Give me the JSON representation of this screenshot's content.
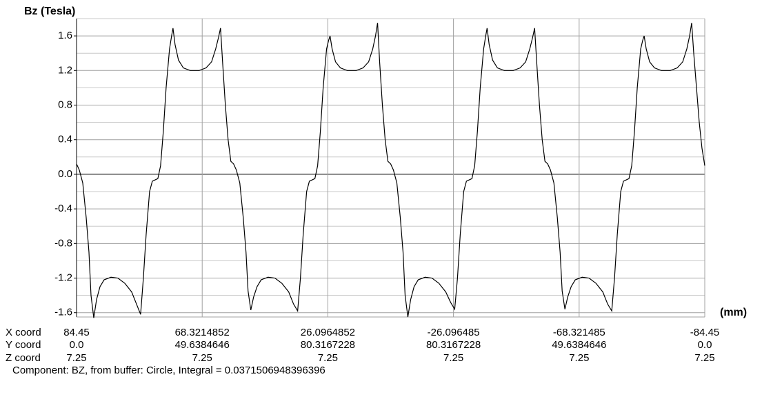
{
  "chart_data": {
    "type": "line",
    "y_axis_title": "Bz (Tesla)",
    "x_axis_title": "(mm)",
    "footer": "Component: BZ, from buffer: Circle, Integral = 0.0371506948396396",
    "xlim": [
      0,
      265.29
    ],
    "ylim": [
      -1.65,
      1.8
    ],
    "yticks": [
      1.6,
      1.2,
      0.8,
      0.4,
      {
        "value": 0,
        "label": "0.0"
      },
      -0.4,
      -0.8,
      -1.2,
      -1.6
    ],
    "minor_yticks": [
      1.8,
      1.4,
      1.0,
      0.6,
      0.2,
      -0.2,
      -0.6,
      -1.0,
      -1.4
    ],
    "grid": true,
    "x_row_label": "X coord",
    "xticks": [
      {
        "value": 0,
        "label": "84.45"
      },
      {
        "value": 53.06,
        "label": "68.3214852"
      },
      {
        "value": 106.12,
        "label": "26.0964852"
      },
      {
        "value": 159.18,
        "label": "-26.096485"
      },
      {
        "value": 212.24,
        "label": "-68.321485"
      },
      {
        "value": 265.29,
        "label": "-84.45"
      }
    ],
    "y_coord_row": {
      "label": "Y coord",
      "values": [
        "0.0",
        "49.6384646",
        "80.3167228",
        "80.3167228",
        "49.6384646",
        "0.0"
      ]
    },
    "z_coord_row": {
      "label": "Z coord",
      "values": [
        "7.25",
        "7.25",
        "7.25",
        "7.25",
        "7.25",
        "7.25"
      ]
    },
    "series": [
      {
        "color": "#000000",
        "x": [
          0,
          1.16,
          2.62,
          4.07,
          5.24,
          6.11,
          7.27,
          8.44,
          9.89,
          11.64,
          14.55,
          17.45,
          20.36,
          23.27,
          25.31,
          27.05,
          28.22,
          29.38,
          30.84,
          32.0,
          34.33,
          35.49,
          36.65,
          37.82,
          39.27,
          40.14,
          40.73,
          41.6,
          43.05,
          45.09,
          48.0,
          51.78,
          54.69,
          57.02,
          58.76,
          59.93,
          60.8,
          61.67,
          62.84,
          64.0,
          65.16,
          66.32,
          67.48,
          68.94,
          70.39,
          71.56,
          72.43,
          73.59,
          74.76,
          76.21,
          77.96,
          80.87,
          83.77,
          86.68,
          89.59,
          91.63,
          93.37,
          94.54,
          95.7,
          97.16,
          98.32,
          100.65,
          101.81,
          102.97,
          104.14,
          105.59,
          106.46,
          107.05,
          107.92,
          109.37,
          111.41,
          114.32,
          118.1,
          121.01,
          123.34,
          125.08,
          126.25,
          127.12,
          127.99,
          129.16,
          130.32,
          131.48,
          132.64,
          133.8,
          135.26,
          136.71,
          137.88,
          138.75,
          139.91,
          141.08,
          142.53,
          144.28,
          147.19,
          150.09,
          153.0,
          155.91,
          157.95,
          159.69,
          160.86,
          162.02,
          163.48,
          164.64,
          166.97,
          168.13,
          169.29,
          170.46,
          171.91,
          172.78,
          173.37,
          174.24,
          175.69,
          177.73,
          180.64,
          184.42,
          187.33,
          189.66,
          191.4,
          192.57,
          193.44,
          194.31,
          195.48,
          196.64,
          197.8,
          198.96,
          200.12,
          201.58,
          203.03,
          204.2,
          205.07,
          206.23,
          207.4,
          208.85,
          210.6,
          213.51,
          216.41,
          219.32,
          222.23,
          224.27,
          226.01,
          227.18,
          228.34,
          229.8,
          230.96,
          233.29,
          234.45,
          235.61,
          236.78,
          238.23,
          239.1,
          239.69,
          240.56,
          242.01,
          244.05,
          246.96,
          250.74,
          253.65,
          255.98,
          257.72,
          258.89,
          259.76,
          260.63,
          261.8,
          262.96,
          264.12,
          265.29
        ],
        "values": [
          0.12,
          0.05,
          -0.1,
          -0.5,
          -0.9,
          -1.4,
          -1.66,
          -1.45,
          -1.3,
          -1.22,
          -1.19,
          -1.2,
          -1.26,
          -1.36,
          -1.5,
          -1.62,
          -1.2,
          -0.7,
          -0.2,
          -0.08,
          -0.05,
          0.1,
          0.5,
          1.0,
          1.45,
          1.6,
          1.69,
          1.5,
          1.32,
          1.23,
          1.2,
          1.2,
          1.23,
          1.3,
          1.45,
          1.58,
          1.69,
          1.3,
          0.8,
          0.4,
          0.15,
          0.12,
          0.05,
          -0.1,
          -0.5,
          -0.9,
          -1.35,
          -1.57,
          -1.42,
          -1.3,
          -1.22,
          -1.19,
          -1.2,
          -1.26,
          -1.36,
          -1.5,
          -1.58,
          -1.2,
          -0.7,
          -0.2,
          -0.08,
          -0.05,
          0.1,
          0.5,
          1.0,
          1.45,
          1.55,
          1.6,
          1.45,
          1.3,
          1.23,
          1.2,
          1.2,
          1.23,
          1.3,
          1.45,
          1.6,
          1.75,
          1.3,
          0.8,
          0.4,
          0.15,
          0.12,
          0.05,
          -0.1,
          -0.5,
          -0.9,
          -1.4,
          -1.65,
          -1.45,
          -1.3,
          -1.22,
          -1.19,
          -1.2,
          -1.26,
          -1.36,
          -1.48,
          -1.56,
          -1.2,
          -0.7,
          -0.2,
          -0.08,
          -0.05,
          0.1,
          0.5,
          1.0,
          1.45,
          1.6,
          1.69,
          1.5,
          1.32,
          1.23,
          1.2,
          1.2,
          1.23,
          1.3,
          1.45,
          1.58,
          1.69,
          1.3,
          0.8,
          0.4,
          0.15,
          0.12,
          0.05,
          -0.1,
          -0.5,
          -0.9,
          -1.35,
          -1.56,
          -1.42,
          -1.3,
          -1.22,
          -1.19,
          -1.2,
          -1.26,
          -1.36,
          -1.5,
          -1.58,
          -1.2,
          -0.7,
          -0.2,
          -0.08,
          -0.05,
          0.1,
          0.5,
          1.0,
          1.45,
          1.55,
          1.6,
          1.45,
          1.3,
          1.23,
          1.2,
          1.2,
          1.23,
          1.3,
          1.45,
          1.6,
          1.75,
          1.4,
          1.0,
          0.6,
          0.3,
          0.1
        ]
      }
    ]
  }
}
